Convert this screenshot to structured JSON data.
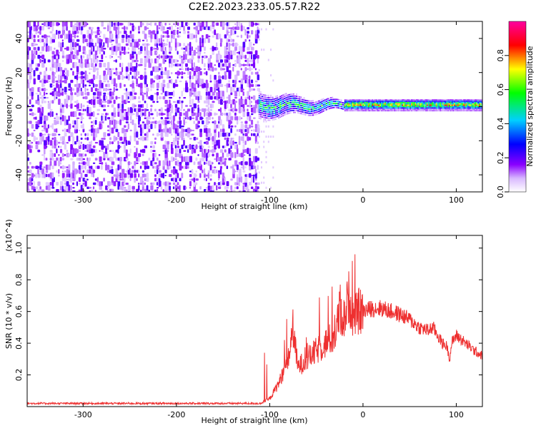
{
  "title": "C2E2.2023.233.05.57.R22",
  "chart_data": [
    {
      "type": "heatmap",
      "name": "spectrogram",
      "xlabel": "Height of straight line (km)",
      "ylabel": "Frequency (Hz)",
      "xlim": [
        -360,
        128
      ],
      "ylim": [
        -50,
        50
      ],
      "xticks": [
        -300,
        -200,
        -100,
        0,
        100
      ],
      "yticks": [
        -40,
        -20,
        0,
        20,
        40
      ],
      "grid": false,
      "colorbar": {
        "label": "Normalized spectral amplitude",
        "range": [
          0,
          1
        ],
        "ticks": [
          "0.0",
          "0.2",
          "0.4",
          "0.6",
          "0.8"
        ],
        "colors": [
          "#ffffff",
          "#8a00ff",
          "#0000ff",
          "#00d0ff",
          "#00ff00",
          "#ffff00",
          "#ff0000",
          "#ff00a0"
        ]
      },
      "regions": [
        {
          "x": [
            -360,
            -112
          ],
          "freq": [
            -50,
            50
          ],
          "amplitude": [
            0.0,
            0.15
          ],
          "description_color": "#7a10f0"
        },
        {
          "x": [
            -112,
            -20
          ],
          "freq": [
            -8,
            10
          ],
          "amplitude": [
            0.2,
            0.55
          ]
        },
        {
          "x": [
            -20,
            128
          ],
          "freq": [
            -2,
            4
          ],
          "amplitude": [
            0.4,
            1.0
          ]
        }
      ]
    },
    {
      "type": "line",
      "name": "snr",
      "xlabel": "Height of straight line (km)",
      "ylabel": "SNR (10 * v/v)",
      "y_multiplier": "(x10^4)",
      "xlim": [
        -360,
        128
      ],
      "ylim": [
        0,
        1.08
      ],
      "xticks": [
        -300,
        -200,
        -100,
        0,
        100
      ],
      "yticks": [
        "0.2",
        "0.4",
        "0.6",
        "0.8",
        "1.0"
      ],
      "color": "#ee3030",
      "series": [
        {
          "x": [
            -360,
            -300,
            -250,
            -200,
            -150,
            -110,
            -100,
            -90,
            -80,
            -75,
            -70,
            -60,
            -50,
            -40,
            -30,
            -25,
            -20,
            -15,
            -10,
            -5,
            0,
            10,
            20,
            30,
            40,
            50,
            60,
            70,
            75,
            80,
            85,
            90,
            93,
            95,
            100,
            110,
            120,
            128
          ],
          "y": [
            0.02,
            0.02,
            0.02,
            0.02,
            0.02,
            0.02,
            0.05,
            0.15,
            0.3,
            0.5,
            0.25,
            0.3,
            0.35,
            0.4,
            0.45,
            0.6,
            0.55,
            0.7,
            0.55,
            0.6,
            0.6,
            0.62,
            0.62,
            0.6,
            0.58,
            0.55,
            0.5,
            0.48,
            0.5,
            0.45,
            0.4,
            0.38,
            0.3,
            0.4,
            0.45,
            0.4,
            0.35,
            0.32
          ]
        }
      ]
    }
  ]
}
